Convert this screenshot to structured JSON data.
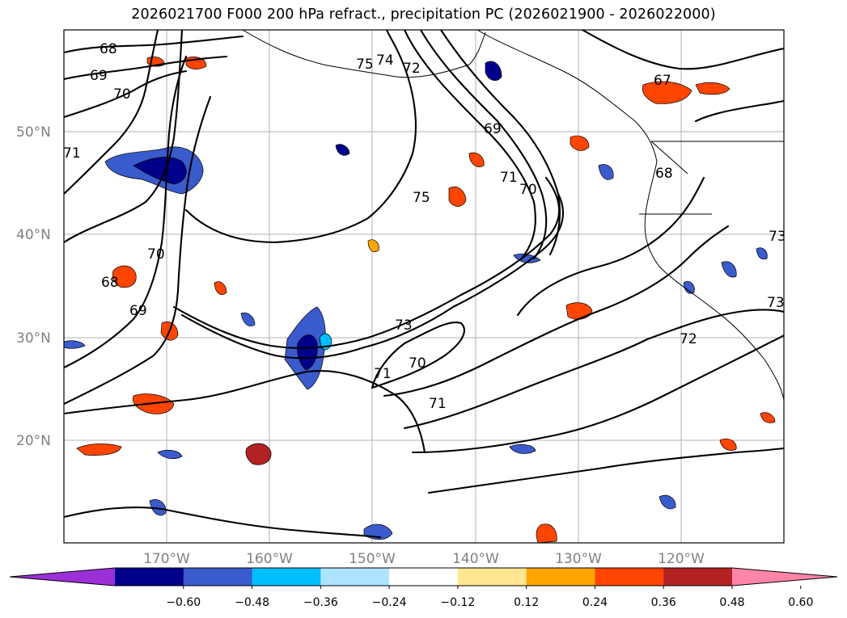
{
  "title": "2026021700 F000 200 hPa refract., precipitation PC (2026021900 - 2026022000)",
  "map": {
    "lat_labels": [
      "50°N",
      "40°N",
      "30°N",
      "20°N"
    ],
    "lon_labels": [
      "170°W",
      "160°W",
      "150°W",
      "140°W",
      "130°W",
      "120°W"
    ],
    "gridline_color": "#b0b0b0",
    "contour_labels": [
      "68",
      "69",
      "70",
      "71",
      "75",
      "74",
      "72",
      "69",
      "71",
      "70",
      "75",
      "70",
      "68",
      "69",
      "73",
      "70",
      "71",
      "71",
      "72",
      "73",
      "73",
      "68",
      "67"
    ]
  },
  "colorbar": {
    "bins": [
      {
        "color": "#9b30d9"
      },
      {
        "color": "#00008b"
      },
      {
        "color": "#3a5bcc"
      },
      {
        "color": "#00bfff"
      },
      {
        "color": "#aee4ff"
      },
      {
        "color": "#ffffff"
      },
      {
        "color": "#ffe68f"
      },
      {
        "color": "#ffa500"
      },
      {
        "color": "#ff4500"
      },
      {
        "color": "#b22222"
      },
      {
        "color": "#ff85a8"
      }
    ],
    "tick_labels": [
      "−0.60",
      "−0.48",
      "−0.36",
      "−0.24",
      "−0.12",
      "0.12",
      "0.24",
      "0.36",
      "0.48",
      "0.60"
    ]
  }
}
